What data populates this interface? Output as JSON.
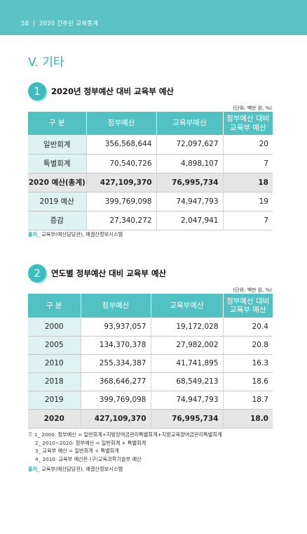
{
  "header": {
    "page": "58",
    "separator": "|",
    "title": "2020 간추린 교육통계"
  },
  "chapter": "V. 기타",
  "section1": {
    "num": "1",
    "title": "2020년 정부예산 대비 교육부 예산",
    "unit": "(단위: 백만 원, %)",
    "columns": [
      "구 분",
      "정부예산",
      "교육부예산",
      "정부예산 대비",
      "교육부 예산"
    ],
    "rows": [
      [
        "일반회계",
        "356,568,644",
        "72,097,627",
        "20"
      ],
      [
        "특별회계",
        "70,540,726",
        "4,898,107",
        "7"
      ],
      [
        "2020 예산(총계)",
        "427,109,370",
        "76,995,734",
        "18"
      ],
      [
        "2019 예산",
        "399,769,098",
        "74,947,793",
        "19"
      ],
      [
        "증감",
        "27,340,272",
        "2,047,941",
        "7"
      ]
    ],
    "source_label": "출처_",
    "source_text": "교육부(예산담당관), 예결산정보시스템"
  },
  "section2": {
    "num": "2",
    "title": "연도별 정부예산 대비 교육부 예산",
    "unit": "(단위: 백만 원, %)",
    "columns": [
      "구 분",
      "정부예산",
      "교육부예산",
      "정부예산 대비",
      "교육부 예산"
    ],
    "rows": [
      [
        "2000",
        "93,937,057",
        "19,172,028",
        "20.4"
      ],
      [
        "2005",
        "134,370,378",
        "27,982,002",
        "20.8"
      ],
      [
        "2010",
        "255,334,387",
        "41,741,895",
        "16.3"
      ],
      [
        "2018",
        "368,646,277",
        "68,549,213",
        "18.6"
      ],
      [
        "2019",
        "399,769,098",
        "74,947,793",
        "18.7"
      ],
      [
        "2020",
        "427,109,370",
        "76,995,734",
        "18.0"
      ]
    ],
    "notes_label": "주",
    "notes": [
      "1_ 2000: 정부예산 = 일반회계+지방양여금관리특별회계+지방교육양여금관리특별회계",
      "2_ 2010~2020: 정부예산 = 일반회계 + 특별회계",
      "3_ 교육부 예산 = 일반회계 + 특별회계",
      "4_ 2010: 교육부 예산은 (구)교육과학기술부 예산"
    ],
    "source_label": "출처_",
    "source_text": "교육부(예산담당관), 예결산정보시스템"
  }
}
